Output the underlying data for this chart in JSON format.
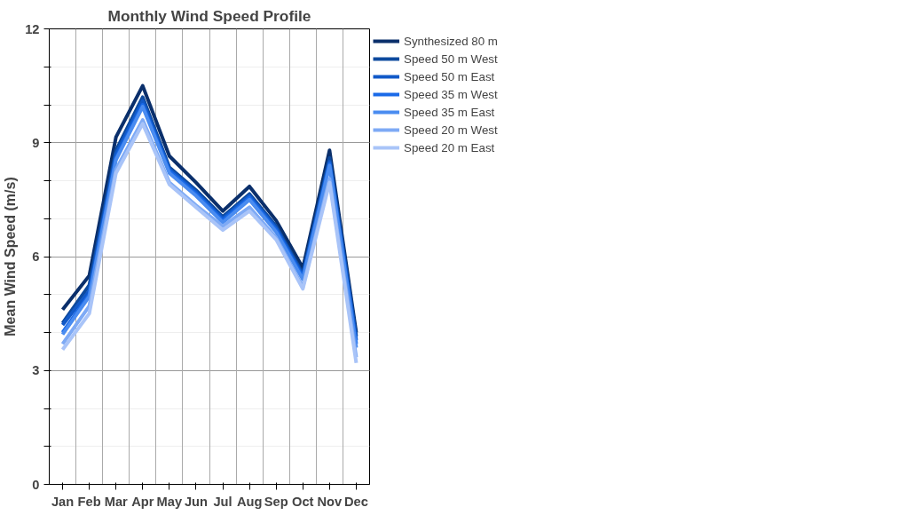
{
  "chart_data": {
    "type": "line",
    "title": "Monthly Wind Speed Profile",
    "ylabel": "Mean Wind Speed (m/s)",
    "categories": [
      "Jan",
      "Feb",
      "Mar",
      "Apr",
      "May",
      "Jun",
      "Jul",
      "Aug",
      "Sep",
      "Oct",
      "Nov",
      "Dec"
    ],
    "series": [
      {
        "name": "Synthesized 80 m",
        "color": "#0a2f6b",
        "values": [
          4.6,
          5.5,
          9.15,
          10.5,
          8.65,
          7.95,
          7.2,
          7.85,
          6.95,
          5.7,
          8.8,
          4.0
        ]
      },
      {
        "name": "Speed 50 m West",
        "color": "#0d4a9e",
        "values": [
          4.25,
          5.25,
          8.8,
          10.2,
          8.35,
          7.75,
          7.05,
          7.65,
          6.8,
          5.55,
          8.6,
          3.9
        ]
      },
      {
        "name": "Speed 50 m East",
        "color": "#1159c8",
        "values": [
          4.2,
          5.1,
          8.7,
          10.1,
          8.3,
          7.7,
          7.0,
          7.6,
          6.75,
          5.5,
          8.5,
          3.8
        ]
      },
      {
        "name": "Speed 35 m West",
        "color": "#1a6ae8",
        "values": [
          4.0,
          5.0,
          8.6,
          10.0,
          8.25,
          7.65,
          6.95,
          7.55,
          6.7,
          5.45,
          8.45,
          3.7
        ]
      },
      {
        "name": "Speed 35 m East",
        "color": "#4a8cf0",
        "values": [
          3.95,
          4.95,
          8.55,
          9.95,
          8.2,
          7.6,
          6.9,
          7.5,
          6.65,
          5.4,
          8.4,
          3.6
        ]
      },
      {
        "name": "Speed 20 m West",
        "color": "#7eaaf5",
        "values": [
          3.7,
          4.7,
          8.3,
          9.6,
          7.95,
          7.35,
          6.8,
          7.3,
          6.5,
          5.2,
          8.05,
          3.35
        ]
      },
      {
        "name": "Speed 20 m East",
        "color": "#a9c4f8",
        "values": [
          3.55,
          4.5,
          8.2,
          9.5,
          7.9,
          7.3,
          6.7,
          7.2,
          6.45,
          5.15,
          7.95,
          3.2
        ]
      }
    ],
    "ylim": [
      0,
      12
    ],
    "yticks": [
      0,
      {
        "value": 1,
        "label": null
      },
      {
        "value": 2,
        "label": null
      },
      3,
      {
        "value": 4,
        "label": null
      },
      {
        "value": 5,
        "label": null
      },
      6,
      {
        "value": 7,
        "label": null
      },
      {
        "value": 8,
        "label": null
      },
      9,
      {
        "value": 10,
        "label": null
      },
      {
        "value": 11,
        "label": null
      },
      12
    ],
    "grid": true,
    "legend": "right",
    "marker": "none",
    "line_style": "solid"
  }
}
